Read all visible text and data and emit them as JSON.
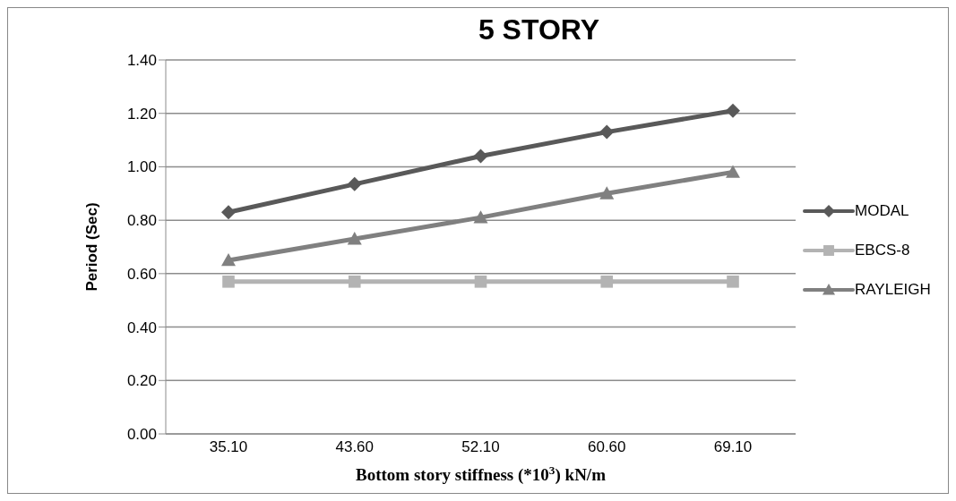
{
  "chart_data": {
    "type": "line",
    "title": "5 STORY",
    "xlabel": "Bottom story stiffness (*10$^{3}$) kN/m",
    "ylabel": "Period (Sec)",
    "categories": [
      "35.10",
      "43.60",
      "52.10",
      "60.60",
      "69.10"
    ],
    "series": [
      {
        "name": "MODAL",
        "color": "#595959",
        "marker": "diamond",
        "values": [
          0.83,
          0.935,
          1.04,
          1.13,
          1.21
        ]
      },
      {
        "name": "EBCS-8",
        "color": "#b3b3b3",
        "marker": "square",
        "values": [
          0.57,
          0.57,
          0.57,
          0.57,
          0.57
        ]
      },
      {
        "name": "RAYLEIGH",
        "color": "#808080",
        "marker": "triangle",
        "values": [
          0.65,
          0.73,
          0.81,
          0.9,
          0.98
        ]
      }
    ],
    "ylim": [
      0,
      1.4
    ],
    "yticks": [
      {
        "value": 0,
        "label": "0.00"
      },
      {
        "value": 0.2,
        "label": "0.20"
      },
      {
        "value": 0.4,
        "label": "0.40"
      },
      {
        "value": 0.6,
        "label": "0.60"
      },
      {
        "value": 0.8,
        "label": "0.80"
      },
      {
        "value": 1,
        "label": "1.00"
      },
      {
        "value": 1.2,
        "label": "1.20"
      },
      {
        "value": 1.4,
        "label": "1.40"
      }
    ],
    "grid": "y",
    "legend": "right"
  }
}
